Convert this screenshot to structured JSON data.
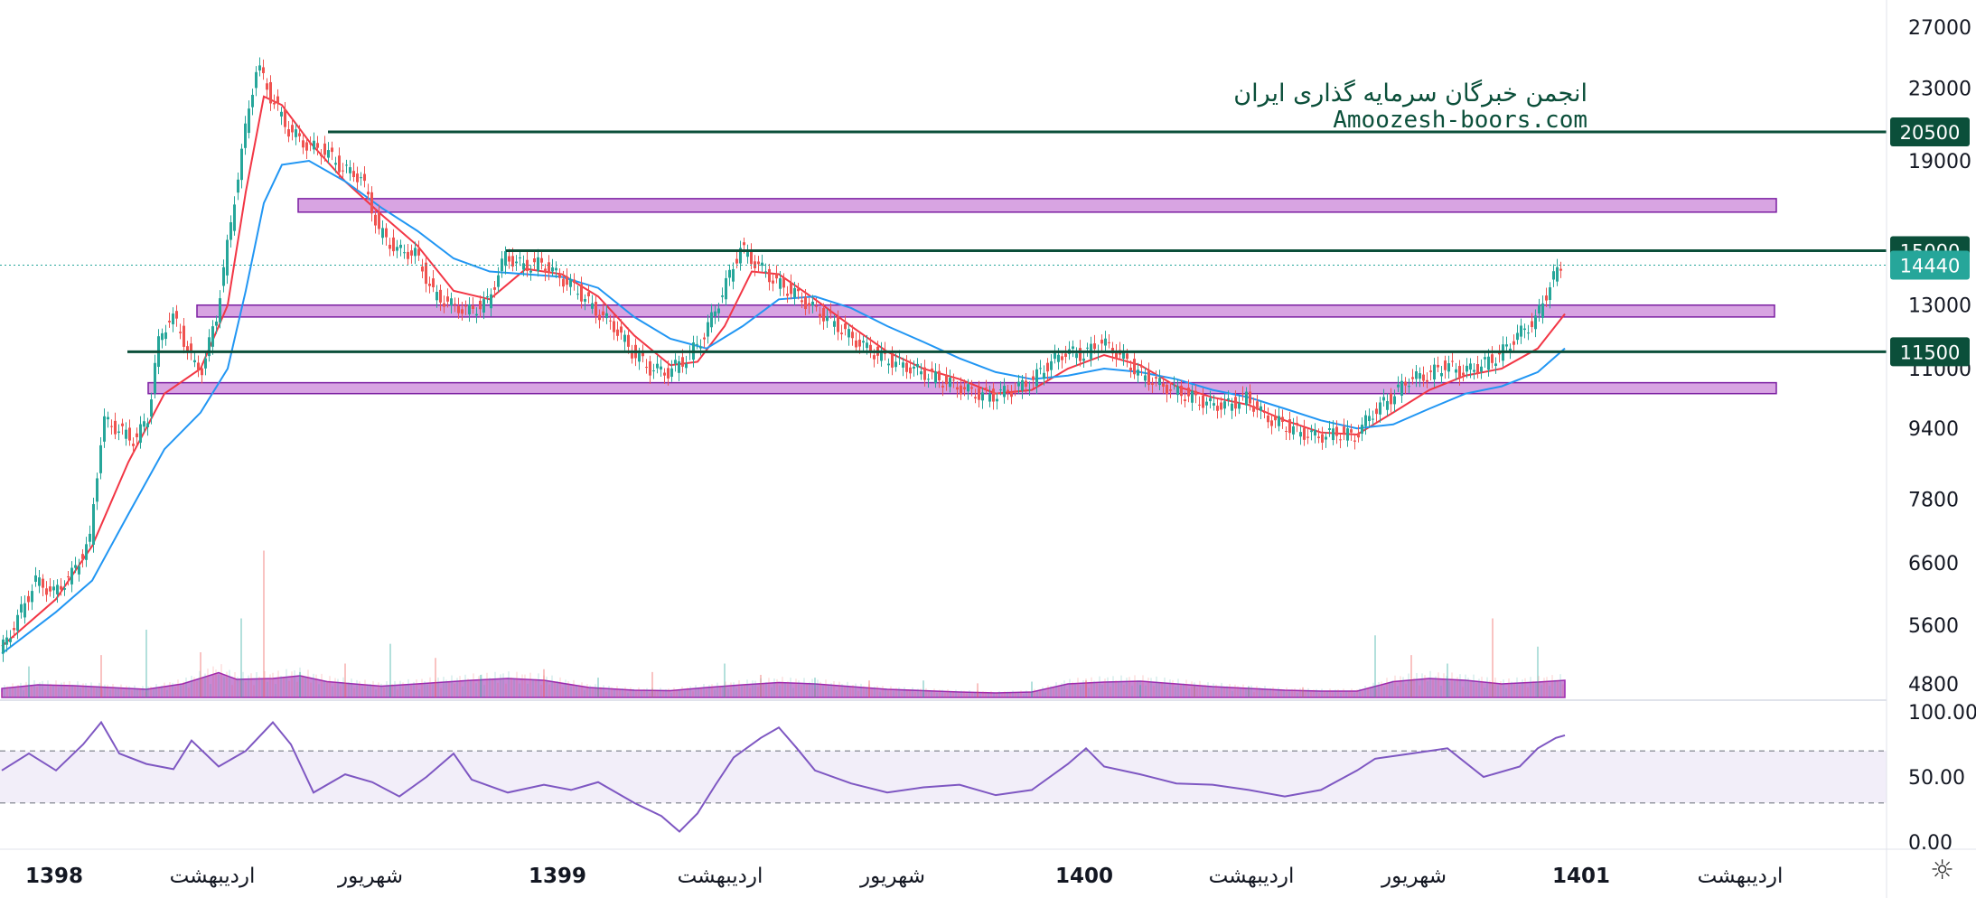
{
  "watermark": {
    "line1": "انجمن خبرگان سرمایه گذاری ایران",
    "line2": "Amoozesh-boors.com"
  },
  "settings_icon": "gear-icon",
  "colors": {
    "up": "#26a69a",
    "down": "#ef5350",
    "ema_fast": "#f23645",
    "ema_slow": "#2196f3",
    "level_line": "#0b4f3a",
    "zone": "#c77dd6",
    "volume_ma": "#9c27b0",
    "rsi": "#7e57c2",
    "price_tag": "#26a69a"
  },
  "chart_data": {
    "type": "candlestick",
    "price_axis": {
      "scale": "log",
      "range": [
        4600,
        29000
      ],
      "ticks": [
        27000,
        23000,
        19000,
        13000,
        11000,
        9400,
        7800,
        6600,
        5600,
        4800
      ]
    },
    "time_axis": {
      "labels": [
        "1398",
        "اردیبهشت",
        "شهریور",
        "1399",
        "اردیبهشت",
        "شهریور",
        "1400",
        "اردیبهشت",
        "شهریور",
        "1401",
        "اردیبهشت"
      ],
      "bold_labels": [
        "1398",
        "1399",
        "1400",
        "1401"
      ]
    },
    "levels": [
      20500,
      15000,
      11500
    ],
    "current_price": 14440,
    "zones": [
      {
        "low": 16600,
        "high": 17200
      },
      {
        "low": 12600,
        "high": 13000
      },
      {
        "low": 10300,
        "high": 10600
      }
    ],
    "series": [
      {
        "kind": "price",
        "points": [
          [
            0,
            5200
          ],
          [
            20,
            5700
          ],
          [
            40,
            6300
          ],
          [
            60,
            6100
          ],
          [
            80,
            6400
          ],
          [
            100,
            7000
          ],
          [
            115,
            9600
          ],
          [
            130,
            9400
          ],
          [
            150,
            9100
          ],
          [
            165,
            9700
          ],
          [
            175,
            11700
          ],
          [
            190,
            12700
          ],
          [
            205,
            11800
          ],
          [
            215,
            11100
          ],
          [
            225,
            11000
          ],
          [
            240,
            12600
          ],
          [
            255,
            15800
          ],
          [
            270,
            20000
          ],
          [
            285,
            24500
          ],
          [
            300,
            22500
          ],
          [
            320,
            20600
          ],
          [
            340,
            19800
          ],
          [
            360,
            19500
          ],
          [
            380,
            18600
          ],
          [
            400,
            18200
          ],
          [
            420,
            15800
          ],
          [
            440,
            15000
          ],
          [
            460,
            14900
          ],
          [
            480,
            13400
          ],
          [
            500,
            13000
          ],
          [
            520,
            12800
          ],
          [
            540,
            13100
          ],
          [
            560,
            14800
          ],
          [
            580,
            14400
          ],
          [
            600,
            14500
          ],
          [
            620,
            14000
          ],
          [
            640,
            13500
          ],
          [
            660,
            12800
          ],
          [
            680,
            12300
          ],
          [
            700,
            11500
          ],
          [
            720,
            11000
          ],
          [
            740,
            10900
          ],
          [
            760,
            11300
          ],
          [
            780,
            12000
          ],
          [
            800,
            13400
          ],
          [
            820,
            15100
          ],
          [
            840,
            14400
          ],
          [
            860,
            13800
          ],
          [
            880,
            13400
          ],
          [
            900,
            12900
          ],
          [
            920,
            12500
          ],
          [
            940,
            12000
          ],
          [
            960,
            11600
          ],
          [
            980,
            11300
          ],
          [
            1000,
            11100
          ],
          [
            1020,
            10900
          ],
          [
            1040,
            10700
          ],
          [
            1060,
            10500
          ],
          [
            1080,
            10300
          ],
          [
            1100,
            10250
          ],
          [
            1120,
            10400
          ],
          [
            1140,
            10600
          ],
          [
            1160,
            11100
          ],
          [
            1180,
            11500
          ],
          [
            1200,
            11400
          ],
          [
            1220,
            11800
          ],
          [
            1240,
            11400
          ],
          [
            1260,
            10900
          ],
          [
            1280,
            10600
          ],
          [
            1300,
            10400
          ],
          [
            1320,
            10200
          ],
          [
            1340,
            10000
          ],
          [
            1360,
            10000
          ],
          [
            1380,
            10200
          ],
          [
            1400,
            9700
          ],
          [
            1420,
            9500
          ],
          [
            1440,
            9300
          ],
          [
            1460,
            9200
          ],
          [
            1480,
            9300
          ],
          [
            1500,
            9200
          ],
          [
            1520,
            9800
          ],
          [
            1540,
            10200
          ],
          [
            1560,
            10700
          ],
          [
            1580,
            10800
          ],
          [
            1600,
            11100
          ],
          [
            1620,
            10900
          ],
          [
            1640,
            11100
          ],
          [
            1660,
            11400
          ],
          [
            1680,
            12000
          ],
          [
            1700,
            12500
          ],
          [
            1720,
            14000
          ],
          [
            1730,
            14440
          ]
        ]
      },
      {
        "kind": "ema_fast",
        "points": [
          [
            0,
            5300
          ],
          [
            60,
            6000
          ],
          [
            100,
            6900
          ],
          [
            140,
            8600
          ],
          [
            180,
            10300
          ],
          [
            220,
            11000
          ],
          [
            250,
            13000
          ],
          [
            270,
            17500
          ],
          [
            290,
            22500
          ],
          [
            310,
            22000
          ],
          [
            340,
            20000
          ],
          [
            380,
            18000
          ],
          [
            420,
            16500
          ],
          [
            460,
            15200
          ],
          [
            500,
            13500
          ],
          [
            540,
            13200
          ],
          [
            580,
            14300
          ],
          [
            620,
            14100
          ],
          [
            660,
            13300
          ],
          [
            700,
            12000
          ],
          [
            740,
            11100
          ],
          [
            770,
            11200
          ],
          [
            800,
            12300
          ],
          [
            830,
            14200
          ],
          [
            860,
            14100
          ],
          [
            900,
            13200
          ],
          [
            940,
            12300
          ],
          [
            980,
            11500
          ],
          [
            1020,
            11000
          ],
          [
            1060,
            10700
          ],
          [
            1100,
            10300
          ],
          [
            1140,
            10400
          ],
          [
            1180,
            11000
          ],
          [
            1220,
            11400
          ],
          [
            1260,
            11100
          ],
          [
            1300,
            10500
          ],
          [
            1340,
            10200
          ],
          [
            1380,
            10000
          ],
          [
            1420,
            9600
          ],
          [
            1460,
            9300
          ],
          [
            1500,
            9250
          ],
          [
            1540,
            9800
          ],
          [
            1580,
            10400
          ],
          [
            1620,
            10800
          ],
          [
            1660,
            11000
          ],
          [
            1700,
            11600
          ],
          [
            1730,
            12700
          ]
        ]
      },
      {
        "kind": "ema_slow",
        "points": [
          [
            0,
            5200
          ],
          [
            60,
            5800
          ],
          [
            100,
            6300
          ],
          [
            140,
            7500
          ],
          [
            180,
            8900
          ],
          [
            220,
            9800
          ],
          [
            250,
            11000
          ],
          [
            270,
            13500
          ],
          [
            290,
            17000
          ],
          [
            310,
            18800
          ],
          [
            340,
            19000
          ],
          [
            380,
            18000
          ],
          [
            420,
            16800
          ],
          [
            460,
            15800
          ],
          [
            500,
            14700
          ],
          [
            540,
            14200
          ],
          [
            580,
            14100
          ],
          [
            620,
            14000
          ],
          [
            660,
            13600
          ],
          [
            700,
            12600
          ],
          [
            740,
            11900
          ],
          [
            780,
            11600
          ],
          [
            820,
            12300
          ],
          [
            860,
            13200
          ],
          [
            900,
            13300
          ],
          [
            940,
            12900
          ],
          [
            980,
            12300
          ],
          [
            1020,
            11800
          ],
          [
            1060,
            11300
          ],
          [
            1100,
            10900
          ],
          [
            1140,
            10700
          ],
          [
            1180,
            10800
          ],
          [
            1220,
            11000
          ],
          [
            1260,
            10900
          ],
          [
            1300,
            10700
          ],
          [
            1340,
            10400
          ],
          [
            1380,
            10200
          ],
          [
            1420,
            9900
          ],
          [
            1460,
            9600
          ],
          [
            1500,
            9400
          ],
          [
            1540,
            9500
          ],
          [
            1580,
            9900
          ],
          [
            1620,
            10300
          ],
          [
            1660,
            10500
          ],
          [
            1700,
            10900
          ],
          [
            1730,
            11600
          ]
        ]
      }
    ],
    "volume": {
      "max": 100,
      "ma_points": [
        [
          0,
          20
        ],
        [
          40,
          28
        ],
        [
          80,
          26
        ],
        [
          120,
          22
        ],
        [
          160,
          18
        ],
        [
          200,
          30
        ],
        [
          240,
          55
        ],
        [
          260,
          40
        ],
        [
          300,
          42
        ],
        [
          330,
          48
        ],
        [
          360,
          35
        ],
        [
          420,
          25
        ],
        [
          460,
          30
        ],
        [
          520,
          38
        ],
        [
          560,
          42
        ],
        [
          600,
          38
        ],
        [
          650,
          22
        ],
        [
          700,
          16
        ],
        [
          740,
          15
        ],
        [
          780,
          22
        ],
        [
          820,
          28
        ],
        [
          860,
          33
        ],
        [
          900,
          30
        ],
        [
          940,
          24
        ],
        [
          980,
          18
        ],
        [
          1020,
          15
        ],
        [
          1060,
          12
        ],
        [
          1100,
          10
        ],
        [
          1140,
          12
        ],
        [
          1180,
          30
        ],
        [
          1220,
          34
        ],
        [
          1260,
          36
        ],
        [
          1300,
          30
        ],
        [
          1340,
          24
        ],
        [
          1380,
          20
        ],
        [
          1420,
          16
        ],
        [
          1460,
          14
        ],
        [
          1500,
          14
        ],
        [
          1540,
          35
        ],
        [
          1580,
          42
        ],
        [
          1620,
          38
        ],
        [
          1660,
          30
        ],
        [
          1700,
          34
        ],
        [
          1730,
          38
        ]
      ],
      "spikes": [
        [
          30,
          55
        ],
        [
          110,
          75
        ],
        [
          160,
          120
        ],
        [
          220,
          80
        ],
        [
          265,
          140
        ],
        [
          290,
          260
        ],
        [
          330,
          45
        ],
        [
          380,
          60
        ],
        [
          430,
          95
        ],
        [
          480,
          70
        ],
        [
          530,
          40
        ],
        [
          600,
          50
        ],
        [
          660,
          35
        ],
        [
          720,
          45
        ],
        [
          800,
          60
        ],
        [
          840,
          40
        ],
        [
          900,
          35
        ],
        [
          960,
          30
        ],
        [
          1020,
          30
        ],
        [
          1080,
          25
        ],
        [
          1140,
          28
        ],
        [
          1200,
          30
        ],
        [
          1260,
          22
        ],
        [
          1320,
          20
        ],
        [
          1380,
          20
        ],
        [
          1440,
          18
        ],
        [
          1520,
          110
        ],
        [
          1560,
          75
        ],
        [
          1600,
          60
        ],
        [
          1650,
          140
        ],
        [
          1700,
          90
        ]
      ]
    },
    "rsi": {
      "range": [
        0,
        100
      ],
      "ticks": [
        100.0,
        50.0,
        0.0
      ],
      "upper": 70,
      "lower": 30,
      "points": [
        [
          0,
          55
        ],
        [
          30,
          68
        ],
        [
          60,
          55
        ],
        [
          90,
          75
        ],
        [
          110,
          92
        ],
        [
          130,
          68
        ],
        [
          160,
          60
        ],
        [
          190,
          56
        ],
        [
          210,
          78
        ],
        [
          240,
          58
        ],
        [
          270,
          70
        ],
        [
          300,
          92
        ],
        [
          320,
          75
        ],
        [
          345,
          38
        ],
        [
          380,
          52
        ],
        [
          410,
          46
        ],
        [
          440,
          35
        ],
        [
          470,
          50
        ],
        [
          500,
          68
        ],
        [
          520,
          48
        ],
        [
          560,
          38
        ],
        [
          600,
          44
        ],
        [
          630,
          40
        ],
        [
          660,
          46
        ],
        [
          700,
          30
        ],
        [
          730,
          20
        ],
        [
          750,
          8
        ],
        [
          770,
          22
        ],
        [
          790,
          44
        ],
        [
          810,
          65
        ],
        [
          840,
          80
        ],
        [
          860,
          88
        ],
        [
          880,
          72
        ],
        [
          900,
          55
        ],
        [
          940,
          45
        ],
        [
          980,
          38
        ],
        [
          1020,
          42
        ],
        [
          1060,
          44
        ],
        [
          1100,
          36
        ],
        [
          1140,
          40
        ],
        [
          1180,
          60
        ],
        [
          1200,
          72
        ],
        [
          1220,
          58
        ],
        [
          1260,
          52
        ],
        [
          1300,
          45
        ],
        [
          1340,
          44
        ],
        [
          1380,
          40
        ],
        [
          1420,
          35
        ],
        [
          1460,
          40
        ],
        [
          1500,
          55
        ],
        [
          1520,
          64
        ],
        [
          1560,
          68
        ],
        [
          1600,
          72
        ],
        [
          1640,
          50
        ],
        [
          1680,
          58
        ],
        [
          1700,
          72
        ],
        [
          1720,
          80
        ],
        [
          1730,
          82
        ]
      ]
    }
  }
}
